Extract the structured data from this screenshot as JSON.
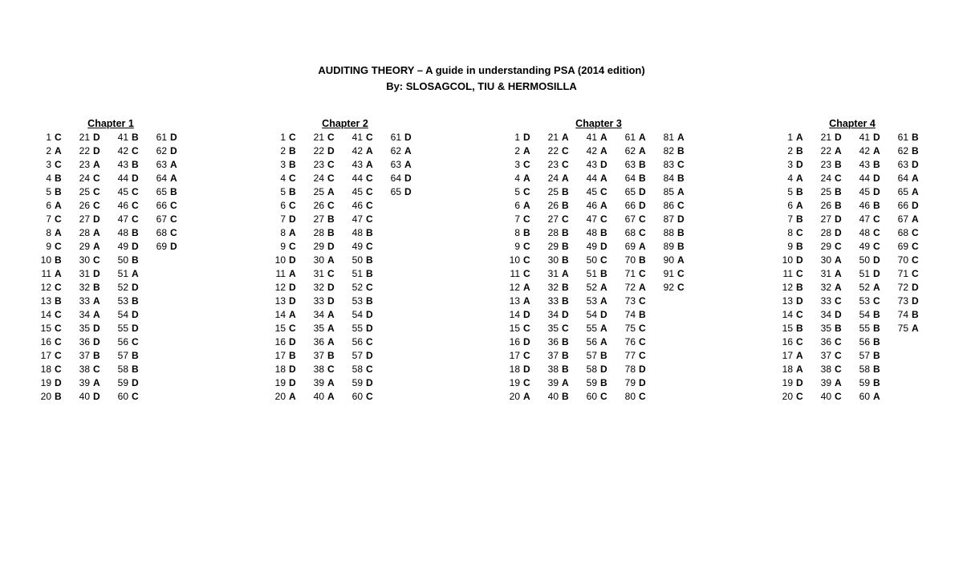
{
  "title_line1": "AUDITING THEORY – A guide in understanding PSA (2014 edition)",
  "title_line2": "By: SLOSAGCOL, TIU & HERMOSILLA",
  "chapters": [
    {
      "title": "Chapter 1",
      "columns": [
        [
          [
            "1",
            "C"
          ],
          [
            "2",
            "A"
          ],
          [
            "3",
            "C"
          ],
          [
            "4",
            "B"
          ],
          [
            "5",
            "B"
          ],
          [
            "6",
            "A"
          ],
          [
            "7",
            "C"
          ],
          [
            "8",
            "A"
          ],
          [
            "9",
            "C"
          ],
          [
            "10",
            "B"
          ],
          [
            "11",
            "A"
          ],
          [
            "12",
            "C"
          ],
          [
            "13",
            "B"
          ],
          [
            "14",
            "C"
          ],
          [
            "15",
            "C"
          ],
          [
            "16",
            "C"
          ],
          [
            "17",
            "C"
          ],
          [
            "18",
            "C"
          ],
          [
            "19",
            "D"
          ],
          [
            "20",
            "B"
          ]
        ],
        [
          [
            "21",
            "D"
          ],
          [
            "22",
            "D"
          ],
          [
            "23",
            "A"
          ],
          [
            "24",
            "C"
          ],
          [
            "25",
            "C"
          ],
          [
            "26",
            "C"
          ],
          [
            "27",
            "D"
          ],
          [
            "28",
            "A"
          ],
          [
            "29",
            "A"
          ],
          [
            "30",
            "C"
          ],
          [
            "31",
            "D"
          ],
          [
            "32",
            "B"
          ],
          [
            "33",
            "A"
          ],
          [
            "34",
            "A"
          ],
          [
            "35",
            "D"
          ],
          [
            "36",
            "D"
          ],
          [
            "37",
            "B"
          ],
          [
            "38",
            "C"
          ],
          [
            "39",
            "A"
          ],
          [
            "40",
            "D"
          ]
        ],
        [
          [
            "41",
            "B"
          ],
          [
            "42",
            "C"
          ],
          [
            "43",
            "B"
          ],
          [
            "44",
            "D"
          ],
          [
            "45",
            "C"
          ],
          [
            "46",
            "C"
          ],
          [
            "47",
            "C"
          ],
          [
            "48",
            "B"
          ],
          [
            "49",
            "D"
          ],
          [
            "50",
            "B"
          ],
          [
            "51",
            "A"
          ],
          [
            "52",
            "D"
          ],
          [
            "53",
            "B"
          ],
          [
            "54",
            "D"
          ],
          [
            "55",
            "D"
          ],
          [
            "56",
            "C"
          ],
          [
            "57",
            "B"
          ],
          [
            "58",
            "B"
          ],
          [
            "59",
            "D"
          ],
          [
            "60",
            "C"
          ]
        ],
        [
          [
            "61",
            "D"
          ],
          [
            "62",
            "D"
          ],
          [
            "63",
            "A"
          ],
          [
            "64",
            "A"
          ],
          [
            "65",
            "B"
          ],
          [
            "66",
            "C"
          ],
          [
            "67",
            "C"
          ],
          [
            "68",
            "C"
          ],
          [
            "69",
            "D"
          ]
        ]
      ]
    },
    {
      "title": "Chapter 2",
      "columns": [
        [
          [
            "1",
            "C"
          ],
          [
            "2",
            "B"
          ],
          [
            "3",
            "B"
          ],
          [
            "4",
            "C"
          ],
          [
            "5",
            "B"
          ],
          [
            "6",
            "C"
          ],
          [
            "7",
            "D"
          ],
          [
            "8",
            "A"
          ],
          [
            "9",
            "C"
          ],
          [
            "10",
            "D"
          ],
          [
            "11",
            "A"
          ],
          [
            "12",
            "D"
          ],
          [
            "13",
            "D"
          ],
          [
            "14",
            "A"
          ],
          [
            "15",
            "C"
          ],
          [
            "16",
            "D"
          ],
          [
            "17",
            "B"
          ],
          [
            "18",
            "D"
          ],
          [
            "19",
            "D"
          ],
          [
            "20",
            "A"
          ]
        ],
        [
          [
            "21",
            "C"
          ],
          [
            "22",
            "D"
          ],
          [
            "23",
            "C"
          ],
          [
            "24",
            "C"
          ],
          [
            "25",
            "A"
          ],
          [
            "26",
            "C"
          ],
          [
            "27",
            "B"
          ],
          [
            "28",
            "B"
          ],
          [
            "29",
            "D"
          ],
          [
            "30",
            "A"
          ],
          [
            "31",
            "C"
          ],
          [
            "32",
            "D"
          ],
          [
            "33",
            "D"
          ],
          [
            "34",
            "A"
          ],
          [
            "35",
            "A"
          ],
          [
            "36",
            "A"
          ],
          [
            "37",
            "B"
          ],
          [
            "38",
            "C"
          ],
          [
            "39",
            "A"
          ],
          [
            "40",
            "A"
          ]
        ],
        [
          [
            "41",
            "C"
          ],
          [
            "42",
            "A"
          ],
          [
            "43",
            "A"
          ],
          [
            "44",
            "C"
          ],
          [
            "45",
            "C"
          ],
          [
            "46",
            "C"
          ],
          [
            "47",
            "C"
          ],
          [
            "48",
            "B"
          ],
          [
            "49",
            "C"
          ],
          [
            "50",
            "B"
          ],
          [
            "51",
            "B"
          ],
          [
            "52",
            "C"
          ],
          [
            "53",
            "B"
          ],
          [
            "54",
            "D"
          ],
          [
            "55",
            "D"
          ],
          [
            "56",
            "C"
          ],
          [
            "57",
            "D"
          ],
          [
            "58",
            "C"
          ],
          [
            "59",
            "D"
          ],
          [
            "60",
            "C"
          ]
        ],
        [
          [
            "61",
            "D"
          ],
          [
            "62",
            "A"
          ],
          [
            "63",
            "A"
          ],
          [
            "64",
            "D"
          ],
          [
            "65",
            "D"
          ]
        ]
      ]
    },
    {
      "title": "Chapter 3",
      "columns": [
        [
          [
            "1",
            "D"
          ],
          [
            "2",
            "A"
          ],
          [
            "3",
            "C"
          ],
          [
            "4",
            "A"
          ],
          [
            "5",
            "C"
          ],
          [
            "6",
            "A"
          ],
          [
            "7",
            "C"
          ],
          [
            "8",
            "B"
          ],
          [
            "9",
            "C"
          ],
          [
            "10",
            "C"
          ],
          [
            "11",
            "C"
          ],
          [
            "12",
            "A"
          ],
          [
            "13",
            "A"
          ],
          [
            "14",
            "D"
          ],
          [
            "15",
            "C"
          ],
          [
            "16",
            "D"
          ],
          [
            "17",
            "C"
          ],
          [
            "18",
            "D"
          ],
          [
            "19",
            "C"
          ],
          [
            "20",
            "A"
          ]
        ],
        [
          [
            "21",
            "A"
          ],
          [
            "22",
            "C"
          ],
          [
            "23",
            "C"
          ],
          [
            "24",
            "A"
          ],
          [
            "25",
            "B"
          ],
          [
            "26",
            "B"
          ],
          [
            "27",
            "C"
          ],
          [
            "28",
            "B"
          ],
          [
            "29",
            "B"
          ],
          [
            "30",
            "B"
          ],
          [
            "31",
            "A"
          ],
          [
            "32",
            "B"
          ],
          [
            "33",
            "B"
          ],
          [
            "34",
            "D"
          ],
          [
            "35",
            "C"
          ],
          [
            "36",
            "B"
          ],
          [
            "37",
            "B"
          ],
          [
            "38",
            "B"
          ],
          [
            "39",
            "A"
          ],
          [
            "40",
            "B"
          ]
        ],
        [
          [
            "41",
            "A"
          ],
          [
            "42",
            "A"
          ],
          [
            "43",
            "D"
          ],
          [
            "44",
            "A"
          ],
          [
            "45",
            "C"
          ],
          [
            "46",
            "A"
          ],
          [
            "47",
            "C"
          ],
          [
            "48",
            "B"
          ],
          [
            "49",
            "D"
          ],
          [
            "50",
            "C"
          ],
          [
            "51",
            "B"
          ],
          [
            "52",
            "A"
          ],
          [
            "53",
            "A"
          ],
          [
            "54",
            "D"
          ],
          [
            "55",
            "A"
          ],
          [
            "56",
            "A"
          ],
          [
            "57",
            "B"
          ],
          [
            "58",
            "D"
          ],
          [
            "59",
            "B"
          ],
          [
            "60",
            "C"
          ]
        ],
        [
          [
            "61",
            "A"
          ],
          [
            "62",
            "A"
          ],
          [
            "63",
            "B"
          ],
          [
            "64",
            "B"
          ],
          [
            "65",
            "D"
          ],
          [
            "66",
            "D"
          ],
          [
            "67",
            "C"
          ],
          [
            "68",
            "C"
          ],
          [
            "69",
            "A"
          ],
          [
            "70",
            "B"
          ],
          [
            "71",
            "C"
          ],
          [
            "72",
            "A"
          ],
          [
            "73",
            "C"
          ],
          [
            "74",
            "B"
          ],
          [
            "75",
            "C"
          ],
          [
            "76",
            "C"
          ],
          [
            "77",
            "C"
          ],
          [
            "78",
            "D"
          ],
          [
            "79",
            "D"
          ],
          [
            "80",
            "C"
          ]
        ],
        [
          [
            "81",
            "A"
          ],
          [
            "82",
            "B"
          ],
          [
            "83",
            "C"
          ],
          [
            "84",
            "B"
          ],
          [
            "85",
            "A"
          ],
          [
            "86",
            "C"
          ],
          [
            "87",
            "D"
          ],
          [
            "88",
            "B"
          ],
          [
            "89",
            "B"
          ],
          [
            "90",
            "A"
          ],
          [
            "91",
            "C"
          ],
          [
            "92",
            "C"
          ]
        ]
      ]
    },
    {
      "title": "Chapter 4",
      "columns": [
        [
          [
            "1",
            "A"
          ],
          [
            "2",
            "B"
          ],
          [
            "3",
            "D"
          ],
          [
            "4",
            "A"
          ],
          [
            "5",
            "B"
          ],
          [
            "6",
            "A"
          ],
          [
            "7",
            "B"
          ],
          [
            "8",
            "C"
          ],
          [
            "9",
            "B"
          ],
          [
            "10",
            "D"
          ],
          [
            "11",
            "C"
          ],
          [
            "12",
            "B"
          ],
          [
            "13",
            "D"
          ],
          [
            "14",
            "C"
          ],
          [
            "15",
            "B"
          ],
          [
            "16",
            "C"
          ],
          [
            "17",
            "A"
          ],
          [
            "18",
            "A"
          ],
          [
            "19",
            "D"
          ],
          [
            "20",
            "C"
          ]
        ],
        [
          [
            "21",
            "D"
          ],
          [
            "22",
            "A"
          ],
          [
            "23",
            "B"
          ],
          [
            "24",
            "C"
          ],
          [
            "25",
            "B"
          ],
          [
            "26",
            "B"
          ],
          [
            "27",
            "D"
          ],
          [
            "28",
            "D"
          ],
          [
            "29",
            "C"
          ],
          [
            "30",
            "A"
          ],
          [
            "31",
            "A"
          ],
          [
            "32",
            "A"
          ],
          [
            "33",
            "C"
          ],
          [
            "34",
            "D"
          ],
          [
            "35",
            "B"
          ],
          [
            "36",
            "C"
          ],
          [
            "37",
            "C"
          ],
          [
            "38",
            "C"
          ],
          [
            "39",
            "A"
          ],
          [
            "40",
            "C"
          ]
        ],
        [
          [
            "41",
            "D"
          ],
          [
            "42",
            "A"
          ],
          [
            "43",
            "B"
          ],
          [
            "44",
            "D"
          ],
          [
            "45",
            "D"
          ],
          [
            "46",
            "B"
          ],
          [
            "47",
            "C"
          ],
          [
            "48",
            "C"
          ],
          [
            "49",
            "C"
          ],
          [
            "50",
            "D"
          ],
          [
            "51",
            "D"
          ],
          [
            "52",
            "A"
          ],
          [
            "53",
            "C"
          ],
          [
            "54",
            "B"
          ],
          [
            "55",
            "B"
          ],
          [
            "56",
            "B"
          ],
          [
            "57",
            "B"
          ],
          [
            "58",
            "B"
          ],
          [
            "59",
            "B"
          ],
          [
            "60",
            "A"
          ]
        ],
        [
          [
            "61",
            "B"
          ],
          [
            "62",
            "B"
          ],
          [
            "63",
            "D"
          ],
          [
            "64",
            "A"
          ],
          [
            "65",
            "A"
          ],
          [
            "66",
            "D"
          ],
          [
            "67",
            "A"
          ],
          [
            "68",
            "C"
          ],
          [
            "69",
            "C"
          ],
          [
            "70",
            "C"
          ],
          [
            "71",
            "C"
          ],
          [
            "72",
            "D"
          ],
          [
            "73",
            "D"
          ],
          [
            "74",
            "B"
          ],
          [
            "75",
            "A"
          ]
        ]
      ]
    }
  ]
}
